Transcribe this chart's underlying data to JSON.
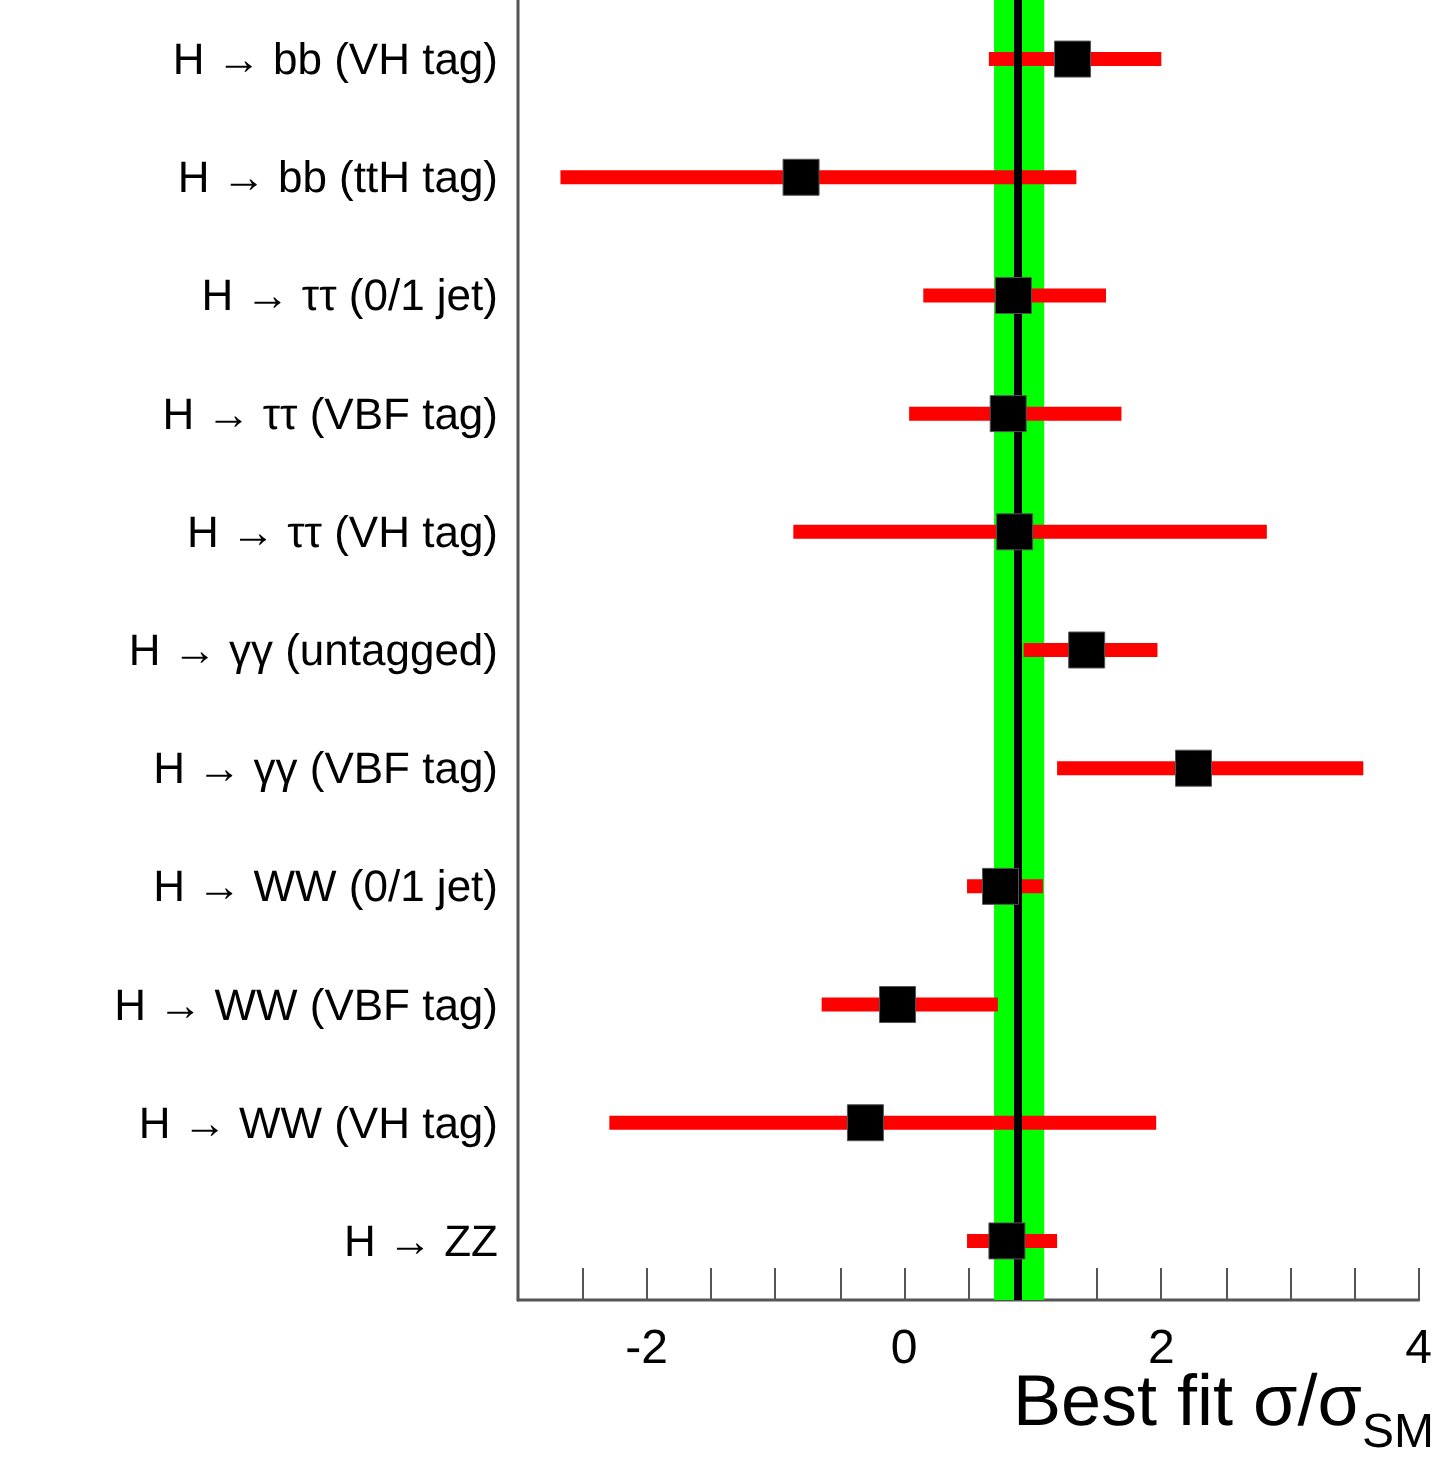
{
  "chart_data": {
    "type": "scatter",
    "orientation": "horizontal",
    "xlabel": "Best fit σ/σ$_{SM}$",
    "categories": [
      "H → bb (VH tag)",
      "H → bb (ttH tag)",
      "H → ττ (0/1 jet)",
      "H → ττ (VBF tag)",
      "H → ττ (VH tag)",
      "H → γγ (untagged)",
      "H → γγ (VBF tag)",
      "H → WW (0/1 jet)",
      "H → WW (VBF tag)",
      "H → WW (VH tag)",
      "H → ZZ"
    ],
    "series": [
      {
        "color": "#000000",
        "values": [
          1.31,
          -0.8,
          0.85,
          0.81,
          0.86,
          1.42,
          2.25,
          0.75,
          -0.05,
          -0.3,
          0.8
        ],
        "errors": [
          [
            0.66,
            2.0
          ],
          [
            -2.67,
            1.34
          ],
          [
            0.15,
            1.57
          ],
          [
            0.04,
            1.69
          ],
          [
            -0.86,
            2.82
          ],
          [
            0.93,
            1.97
          ],
          [
            1.19,
            3.57
          ],
          [
            0.49,
            1.08
          ],
          [
            -0.64,
            0.73
          ],
          [
            -2.29,
            1.96
          ],
          [
            0.49,
            1.19
          ]
        ]
      }
    ],
    "marker": "square",
    "xlim": [
      -3,
      4
    ],
    "xticks": [
      {
        "value": -2.5,
        "label": null
      },
      -2,
      {
        "value": -1.5,
        "label": null
      },
      {
        "value": -1,
        "label": null
      },
      {
        "value": -0.5,
        "label": null
      },
      0,
      {
        "value": 0.5,
        "label": null
      },
      {
        "value": 1,
        "label": null
      },
      {
        "value": 1.5,
        "label": null
      },
      2,
      {
        "value": 2.5,
        "label": null
      },
      {
        "value": 3,
        "label": null
      },
      {
        "value": 3.5,
        "label": null
      },
      4
    ],
    "bands": [
      {
        "axis": "x",
        "from": 0.7,
        "to": 1.09,
        "color": "#00ff00"
      }
    ],
    "ref_lines": [
      {
        "axis": "x",
        "value": 0.88,
        "color": "#000000"
      }
    ],
    "grid": false
  }
}
